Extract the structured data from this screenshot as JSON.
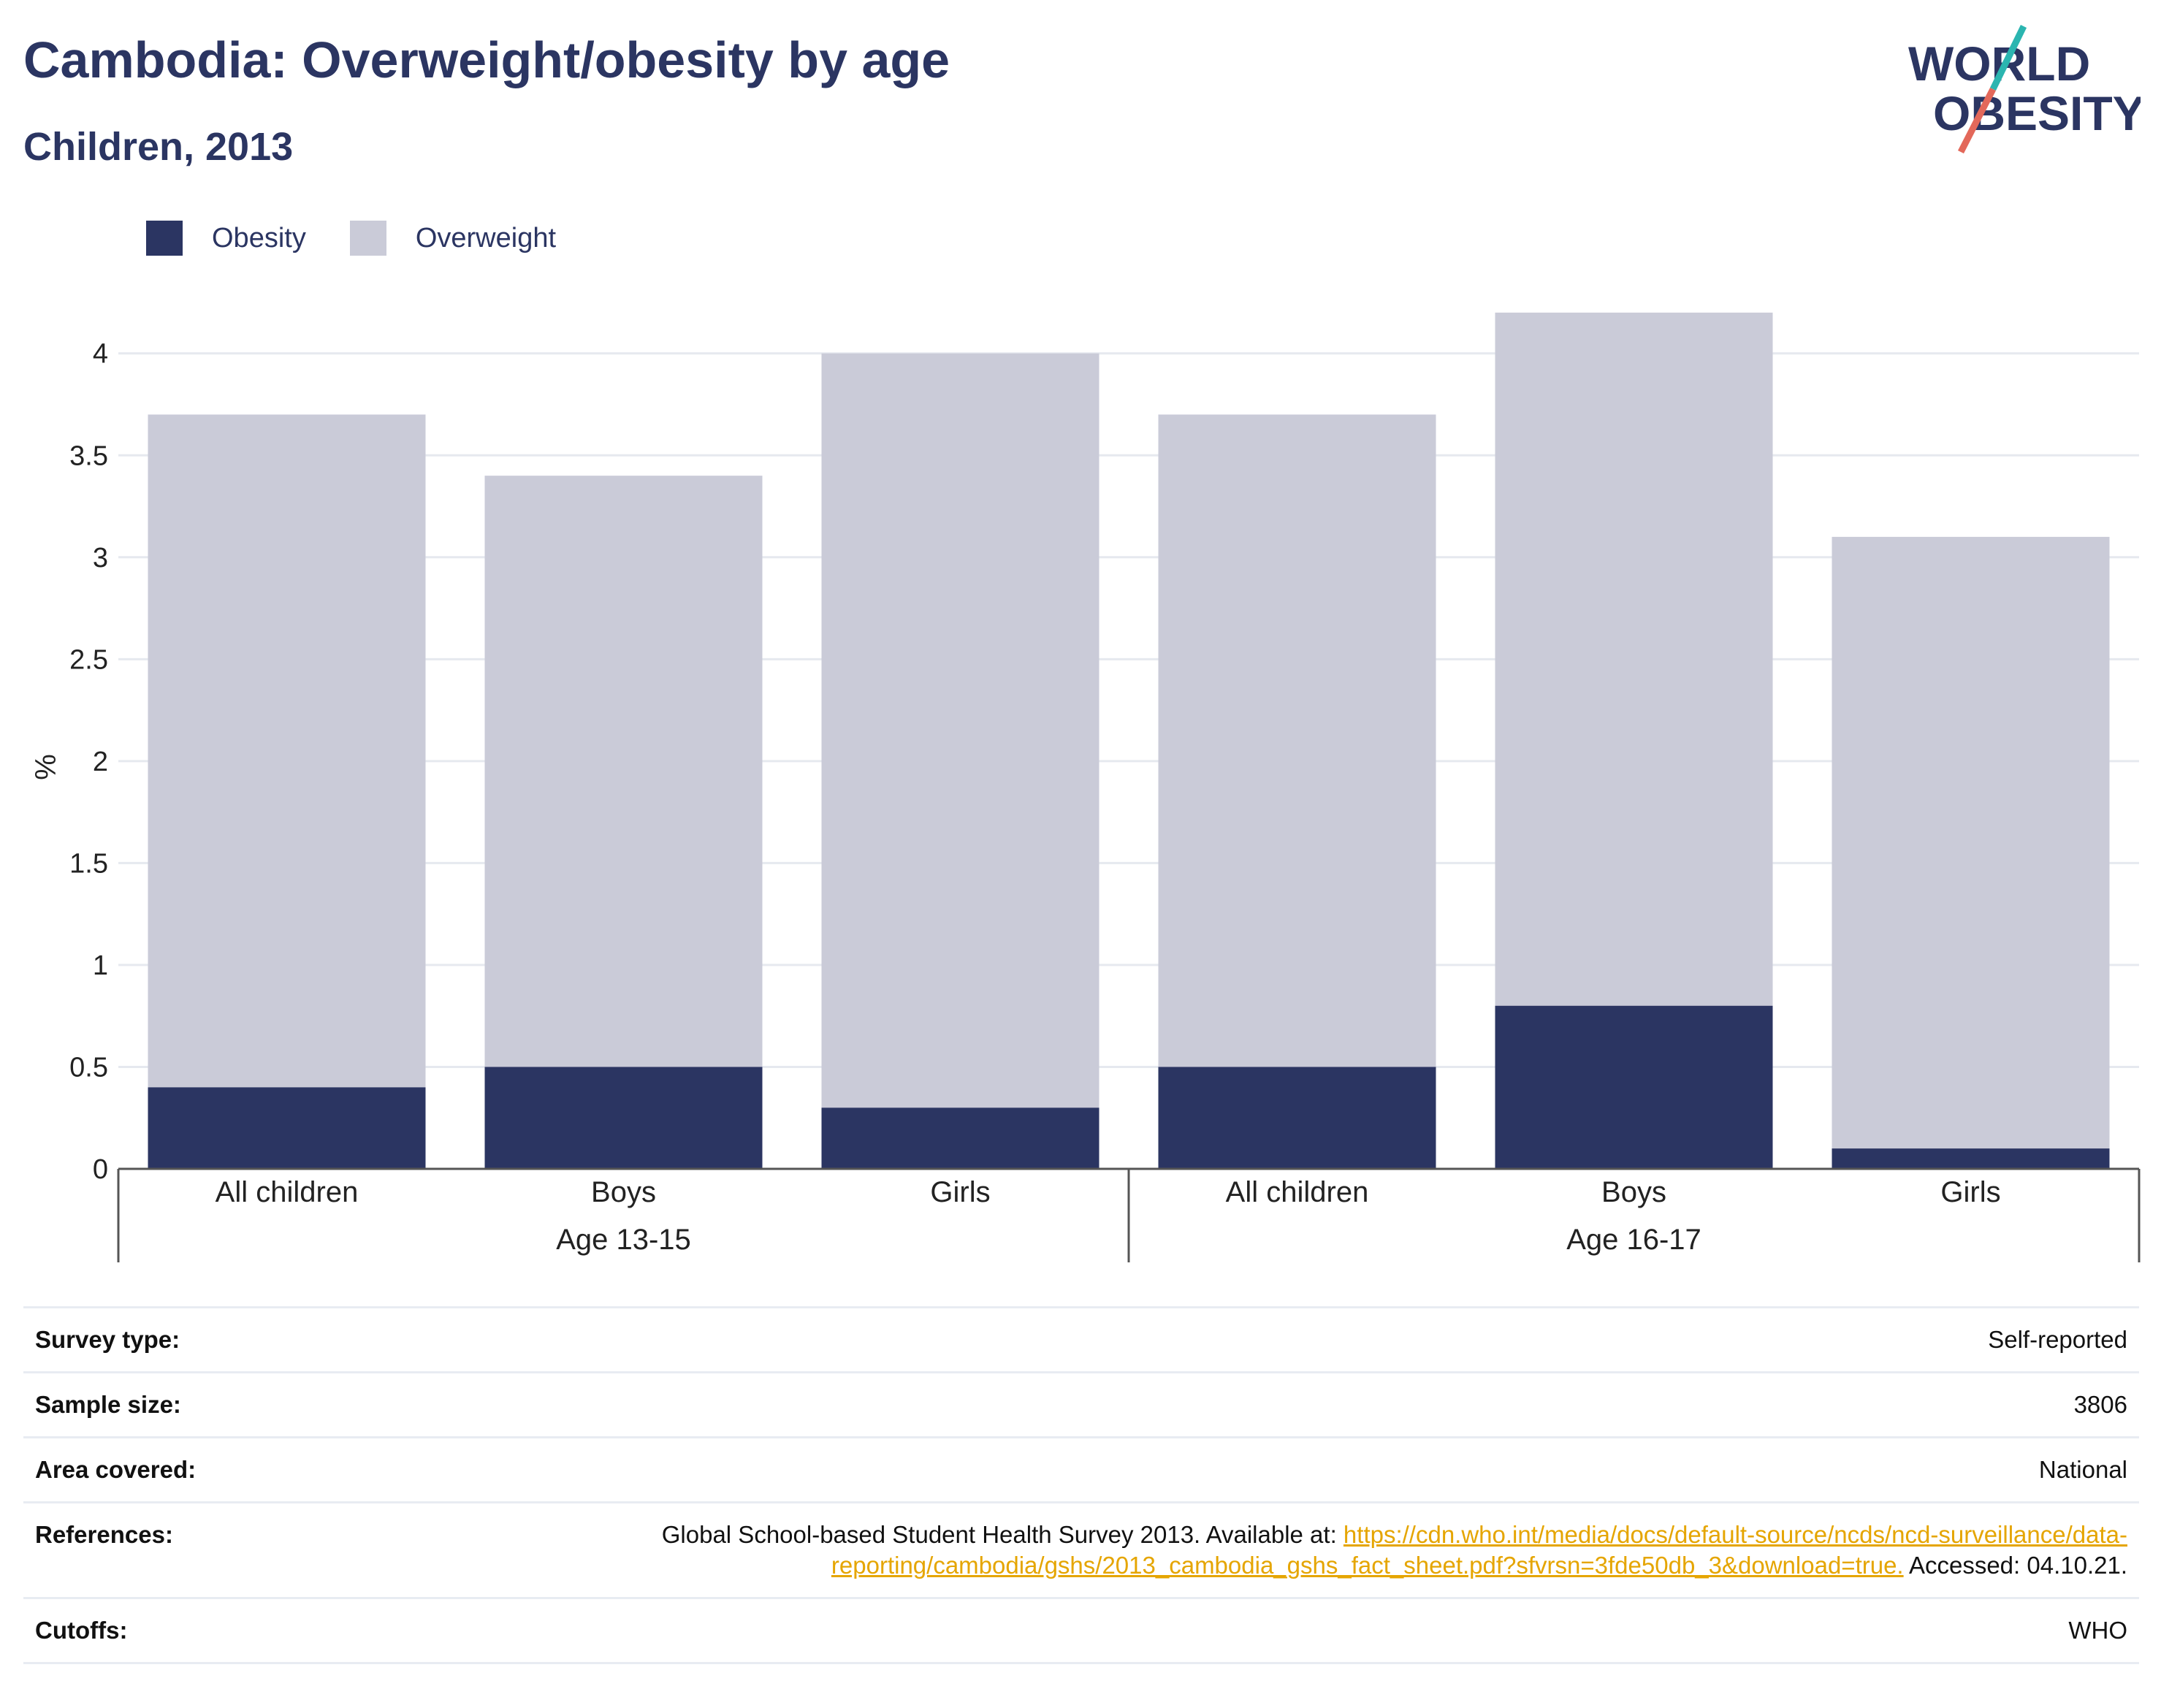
{
  "header": {
    "title": "Cambodia: Overweight/obesity by age",
    "subtitle": "Children, 2013"
  },
  "logo": {
    "line1": "WORLD",
    "line2": "OBESITY",
    "colors": {
      "text": "#2b3562",
      "slash_top": "#2bb5b0",
      "slash_bottom": "#e3685a"
    }
  },
  "colors": {
    "obesity": "#2b3562",
    "overweight": "#cacbd8",
    "grid": "#e6e9ef",
    "axis": "#555555",
    "link": "#e5a500"
  },
  "chart_data": {
    "type": "bar",
    "stacked": true,
    "ylabel": "%",
    "xlabel": "",
    "ylim": [
      0,
      4.3
    ],
    "yticks": [
      0,
      0.5,
      1,
      1.5,
      2,
      2.5,
      3,
      3.5,
      4
    ],
    "grid": true,
    "legend_position": "top-left",
    "groups": [
      {
        "label": "Age 13-15",
        "categories": [
          "All children",
          "Boys",
          "Girls"
        ]
      },
      {
        "label": "Age 16-17",
        "categories": [
          "All children",
          "Boys",
          "Girls"
        ]
      }
    ],
    "categories": [
      "All children",
      "Boys",
      "Girls",
      "All children",
      "Boys",
      "Girls"
    ],
    "series": [
      {
        "name": "Obesity",
        "values": [
          0.4,
          0.5,
          0.3,
          0.5,
          0.8,
          0.1
        ]
      },
      {
        "name": "Overweight",
        "values": [
          3.3,
          2.9,
          3.7,
          3.2,
          3.4,
          3.0
        ]
      }
    ]
  },
  "info": [
    {
      "key": "Survey type:",
      "value": "Self-reported"
    },
    {
      "key": "Sample size:",
      "value": "3806"
    },
    {
      "key": "Area covered:",
      "value": "National"
    },
    {
      "key": "References:",
      "value_prefix": "Global School-based Student Health Survey 2013. Available at: ",
      "link": "https://cdn.who.int/media/docs/default-source/ncds/ncd-surveillance/data-reporting/cambodia/gshs/2013_cambodia_gshs_fact_sheet.pdf?sfvrsn=3fde50db_3&download=true.",
      "value_suffix": " Accessed: 04.10.21."
    },
    {
      "key": "Cutoffs:",
      "value": "WHO"
    }
  ]
}
